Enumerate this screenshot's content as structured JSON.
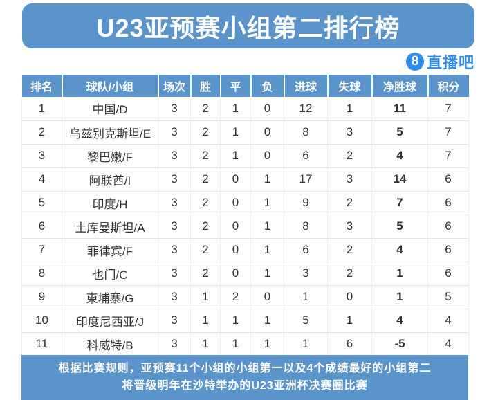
{
  "title": "U23亚预赛小组第二排行榜",
  "logo": {
    "badge": "8",
    "text": "直播吧"
  },
  "colors": {
    "primary_blue": "#5b94cb",
    "logo_blue": "#2f8ce8",
    "text_dark": "#333333",
    "grid_line": "#e4e4e4",
    "background": "#ffffff"
  },
  "chart_data": {
    "type": "table",
    "title": "U23亚预赛小组第二排行榜",
    "columns": [
      "排名",
      "球队/小组",
      "场次",
      "胜",
      "平",
      "负",
      "进球",
      "失球",
      "净胜球",
      "积分"
    ],
    "rows": [
      [
        "1",
        "中国/D",
        "3",
        "2",
        "1",
        "0",
        "12",
        "1",
        "11",
        "7"
      ],
      [
        "2",
        "乌兹别克斯坦/E",
        "3",
        "2",
        "1",
        "0",
        "8",
        "3",
        "5",
        "7"
      ],
      [
        "3",
        "黎巴嫩/F",
        "3",
        "2",
        "1",
        "0",
        "6",
        "2",
        "4",
        "7"
      ],
      [
        "4",
        "阿联酋/I",
        "3",
        "2",
        "0",
        "1",
        "17",
        "3",
        "14",
        "6"
      ],
      [
        "5",
        "印度/H",
        "3",
        "2",
        "0",
        "1",
        "9",
        "2",
        "7",
        "6"
      ],
      [
        "6",
        "土库曼斯坦/A",
        "3",
        "2",
        "0",
        "1",
        "8",
        "3",
        "5",
        "6"
      ],
      [
        "7",
        "菲律宾/F",
        "3",
        "2",
        "0",
        "1",
        "6",
        "2",
        "4",
        "6"
      ],
      [
        "8",
        "也门/C",
        "3",
        "2",
        "0",
        "1",
        "3",
        "2",
        "1",
        "6"
      ],
      [
        "9",
        "柬埔寨/G",
        "3",
        "1",
        "2",
        "0",
        "1",
        "0",
        "1",
        "5"
      ],
      [
        "10",
        "印度尼西亚/J",
        "3",
        "1",
        "1",
        "1",
        "5",
        "1",
        "4",
        "4"
      ],
      [
        "11",
        "科威特/B",
        "3",
        "1",
        "1",
        "1",
        "1",
        "6",
        "-5",
        "4"
      ]
    ],
    "bold_column_index": 8,
    "layout": {
      "grid": true,
      "header_background": "#5b94cb",
      "header_text_color": "#ffffff"
    }
  },
  "footer": {
    "line1": "根据比赛规则，亚预赛11个小组的小组第一以及4个成绩最好的小组第二",
    "line2": "将晋级明年在沙特举办的U23亚洲杯决赛圈比赛"
  }
}
